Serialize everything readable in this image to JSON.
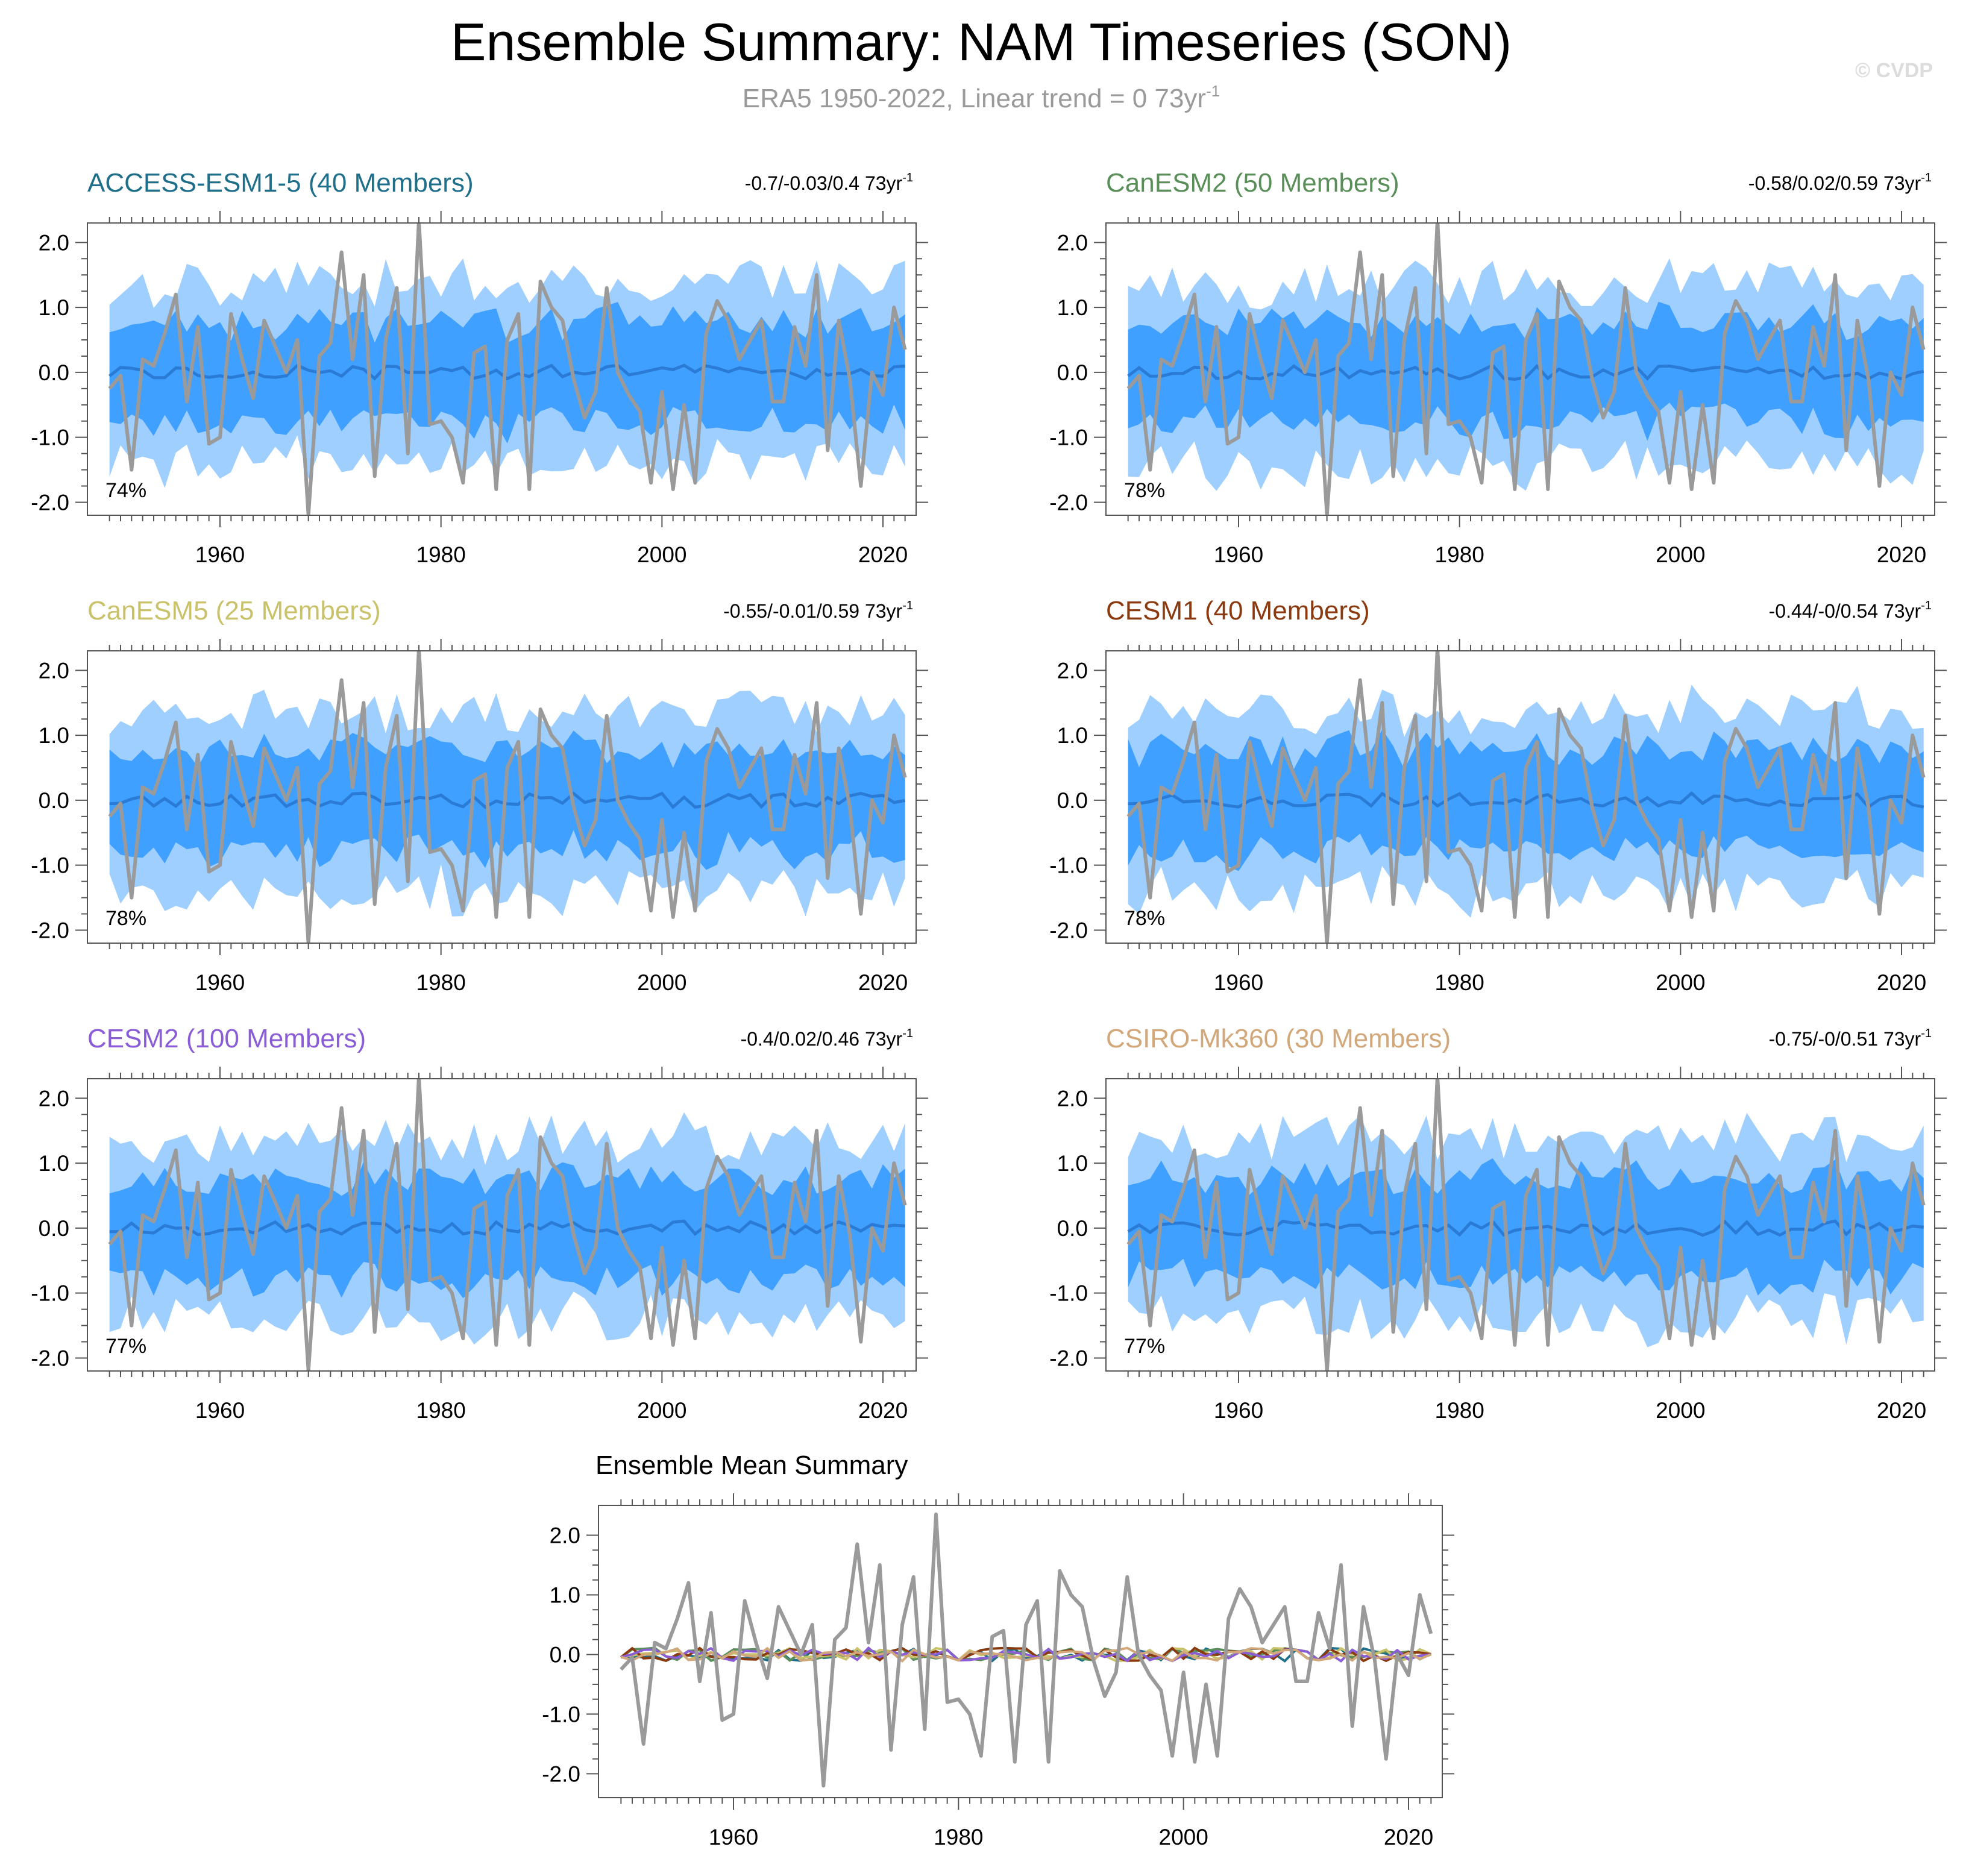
{
  "header": {
    "title": "Ensemble Summary: NAM Timeseries (SON)",
    "subtitle_prefix": "ERA5 1950-2022, Linear trend = 0 73yr",
    "subtitle_exponent": "-1",
    "watermark": "© CVDP"
  },
  "colors": {
    "observed": "#9a9a9a",
    "band_outer": "#9fcfff",
    "band_inner": "#3fa0ff",
    "ensemble_mean": "#2a7bd5"
  },
  "chart_data": [
    {
      "type": "area",
      "title": "ACCESS-ESM1-5 (40 Members)",
      "title_color": "#1f6f8b",
      "trend_text": "-0.7/-0.03/0.4 73yr",
      "trend_exponent": "-1",
      "percent_label": "74%",
      "x_range": [
        1948,
        2023
      ],
      "ylim": [
        -2.2,
        2.3
      ],
      "xticks": [
        1960,
        1980,
        2000,
        2020
      ],
      "yticks": [
        2.0,
        1.0,
        0.0,
        -1.0,
        -2.0
      ],
      "ytick_labels": [
        "2.0",
        "1.0",
        "0.0",
        "-1.0",
        "-2.0"
      ],
      "seed": 11
    },
    {
      "type": "area",
      "title": "CanESM2 (50 Members)",
      "title_color": "#5a8f5a",
      "trend_text": "-0.58/0.02/0.59 73yr",
      "trend_exponent": "-1",
      "percent_label": "78%",
      "x_range": [
        1948,
        2023
      ],
      "ylim": [
        -2.2,
        2.3
      ],
      "xticks": [
        1960,
        1980,
        2000,
        2020
      ],
      "yticks": [
        2.0,
        1.0,
        0.0,
        -1.0,
        -2.0
      ],
      "ytick_labels": [
        "2.0",
        "1.0",
        "0.0",
        "-1.0",
        "-2.0"
      ],
      "seed": 23
    },
    {
      "type": "area",
      "title": "CanESM5 (25 Members)",
      "title_color": "#c9c26a",
      "trend_text": "-0.55/-0.01/0.59 73yr",
      "trend_exponent": "-1",
      "percent_label": "78%",
      "x_range": [
        1948,
        2023
      ],
      "ylim": [
        -2.2,
        2.3
      ],
      "xticks": [
        1960,
        1980,
        2000,
        2020
      ],
      "yticks": [
        2.0,
        1.0,
        0.0,
        -1.0,
        -2.0
      ],
      "ytick_labels": [
        "2.0",
        "1.0",
        "0.0",
        "-1.0",
        "-2.0"
      ],
      "seed": 37
    },
    {
      "type": "area",
      "title": "CESM1 (40 Members)",
      "title_color": "#8b3a0f",
      "trend_text": "-0.44/-0/0.54 73yr",
      "trend_exponent": "-1",
      "percent_label": "78%",
      "x_range": [
        1948,
        2023
      ],
      "ylim": [
        -2.2,
        2.3
      ],
      "xticks": [
        1960,
        1980,
        2000,
        2020
      ],
      "yticks": [
        2.0,
        1.0,
        0.0,
        -1.0,
        -2.0
      ],
      "ytick_labels": [
        "2.0",
        "1.0",
        "0.0",
        "-1.0",
        "-2.0"
      ],
      "seed": 41
    },
    {
      "type": "area",
      "title": "CESM2 (100 Members)",
      "title_color": "#8a5cd6",
      "trend_text": "-0.4/0.02/0.46 73yr",
      "trend_exponent": "-1",
      "percent_label": "77%",
      "x_range": [
        1948,
        2023
      ],
      "ylim": [
        -2.2,
        2.3
      ],
      "xticks": [
        1960,
        1980,
        2000,
        2020
      ],
      "yticks": [
        2.0,
        1.0,
        0.0,
        -1.0,
        -2.0
      ],
      "ytick_labels": [
        "2.0",
        "1.0",
        "0.0",
        "-1.0",
        "-2.0"
      ],
      "seed": 53
    },
    {
      "type": "area",
      "title": "CSIRO-Mk360 (30 Members)",
      "title_color": "#d2a77a",
      "trend_text": "-0.75/-0/0.51 73yr",
      "trend_exponent": "-1",
      "percent_label": "77%",
      "x_range": [
        1948,
        2023
      ],
      "ylim": [
        -2.2,
        2.3
      ],
      "xticks": [
        1960,
        1980,
        2000,
        2020
      ],
      "yticks": [
        2.0,
        1.0,
        0.0,
        -1.0,
        -2.0
      ],
      "ytick_labels": [
        "2.0",
        "1.0",
        "0.0",
        "-1.0",
        "-2.0"
      ],
      "seed": 67
    },
    {
      "type": "line",
      "title": "Ensemble Mean Summary",
      "title_color": "#000000",
      "x_range": [
        1948,
        2023
      ],
      "ylim": [
        -2.4,
        2.5
      ],
      "xticks": [
        1960,
        1980,
        2000,
        2020
      ],
      "yticks": [
        2.0,
        1.0,
        0.0,
        -1.0,
        -2.0
      ],
      "ytick_labels": [
        "2.0",
        "1.0",
        "0.0",
        "-1.0",
        "-2.0"
      ],
      "model_line_colors": [
        "#1f6f8b",
        "#5a8f5a",
        "#c9c26a",
        "#8b3a0f",
        "#8a5cd6",
        "#d2a77a"
      ]
    }
  ],
  "observed_series": {
    "name": "ERA5",
    "years": [
      1950,
      2022
    ],
    "values": [
      -0.25,
      -0.05,
      -1.5,
      0.2,
      0.1,
      0.6,
      1.2,
      -0.45,
      0.7,
      -1.1,
      -1.0,
      0.9,
      0.2,
      -0.4,
      0.8,
      0.4,
      0.0,
      0.5,
      -2.2,
      0.25,
      0.45,
      1.85,
      0.2,
      1.5,
      -1.6,
      0.5,
      1.3,
      -1.25,
      2.35,
      -0.8,
      -0.75,
      -1.0,
      -1.7,
      0.3,
      0.4,
      -1.8,
      0.5,
      0.9,
      -1.8,
      1.4,
      1.0,
      0.8,
      -0.1,
      -0.7,
      -0.3,
      1.3,
      0.0,
      -0.35,
      -0.6,
      -1.7,
      -0.3,
      -1.8,
      -0.5,
      -1.7,
      0.6,
      1.1,
      0.8,
      0.2,
      0.5,
      0.8,
      -0.45,
      -0.45,
      0.7,
      0.1,
      1.5,
      -1.2,
      0.8,
      -0.1,
      -1.75,
      0.0,
      -0.35,
      1.0,
      0.35
    ]
  }
}
